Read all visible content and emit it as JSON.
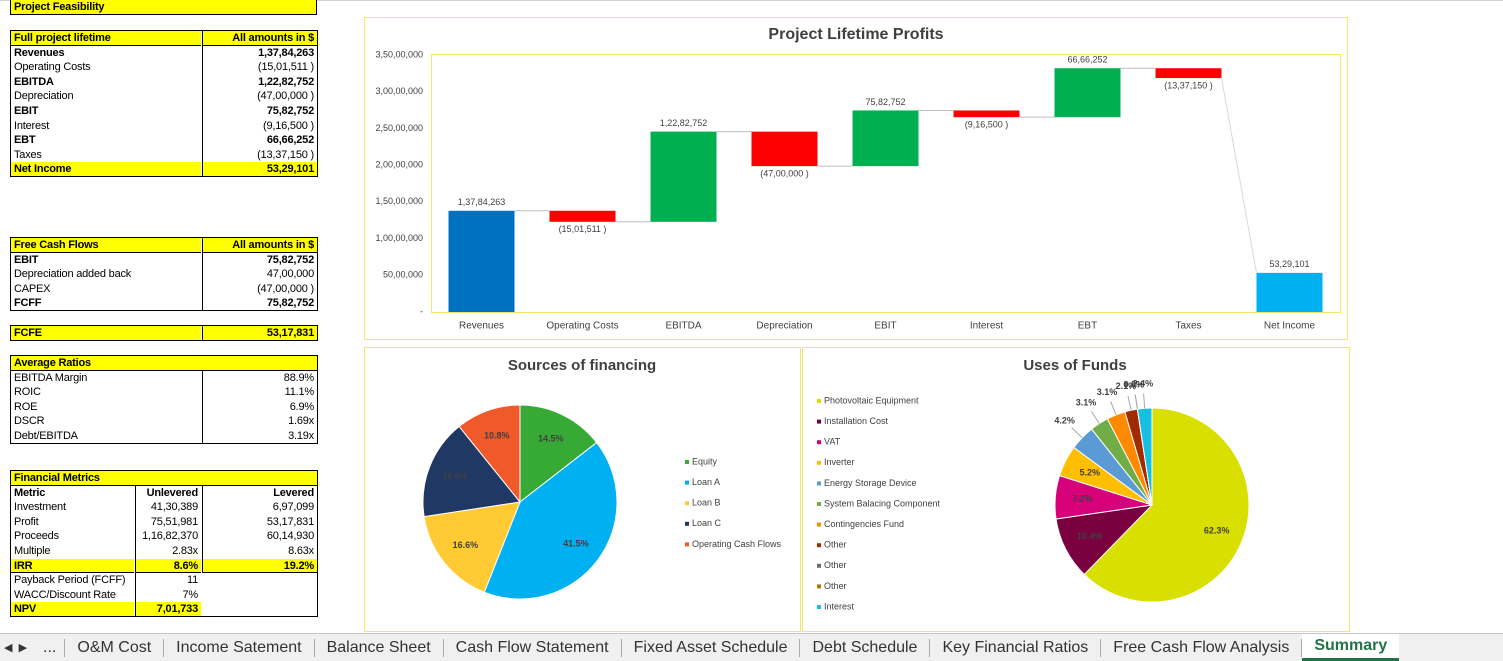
{
  "sheet": {
    "title": "Project Feasibility",
    "lifetime": [
      [
        "Full project lifetime",
        "All amounts in $"
      ],
      [
        "Revenues",
        "1,37,84,263"
      ],
      [
        "Operating Costs",
        "(15,01,511 )"
      ],
      [
        "EBITDA",
        "1,22,82,752"
      ],
      [
        "Depreciation",
        "(47,00,000 )"
      ],
      [
        "EBIT",
        "75,82,752"
      ],
      [
        "Interest",
        "(9,16,500 )"
      ],
      [
        "EBT",
        "66,66,252"
      ],
      [
        "Taxes",
        "(13,37,150 )"
      ],
      [
        "Net Income",
        "53,29,101"
      ]
    ],
    "fcf": [
      [
        "Free Cash Flows",
        "All amounts in $"
      ],
      [
        "EBIT",
        "75,82,752"
      ],
      [
        "Depreciation added back",
        "47,00,000"
      ],
      [
        "CAPEX",
        "(47,00,000 )"
      ],
      [
        "FCFF",
        "75,82,752"
      ]
    ],
    "fcfe": [
      [
        "FCFE",
        "53,17,831"
      ]
    ],
    "ratios": [
      [
        "Average Ratios"
      ],
      [
        "EBITDA Margin",
        "88.9%"
      ],
      [
        "ROIC",
        "11.1%"
      ],
      [
        "ROE",
        "6.9%"
      ],
      [
        "DSCR",
        "1.69x"
      ],
      [
        "Debt/EBITDA",
        "3.19x"
      ]
    ],
    "metrics": [
      [
        "Financial Metrics"
      ],
      [
        "Metric",
        "Unlevered",
        "Levered"
      ],
      [
        "Investment",
        "41,30,389",
        "6,97,099"
      ],
      [
        "Profit",
        "75,51,981",
        "53,17,831"
      ],
      [
        "Proceeds",
        "1,16,82,370",
        "60,14,930"
      ],
      [
        "Multiple",
        "2.83x",
        "8.63x"
      ],
      [
        "IRR",
        "8.6%",
        "19.2%"
      ],
      [
        "Payback Period (FCFF)",
        "11"
      ],
      [
        "WACC/Discount Rate",
        "7%"
      ],
      [
        "NPV",
        "7,01,733"
      ]
    ]
  },
  "tabs": {
    "nav": "...",
    "items": [
      "O&M Cost",
      "Income Satement",
      "Balance Sheet",
      "Cash Flow Statement",
      "Fixed Asset Schedule",
      "Debt Schedule",
      "Key Financial Ratios",
      "Free Cash Flow Analysis",
      "Summary"
    ],
    "active": 8
  },
  "chart_data": [
    {
      "type": "waterfall",
      "title": "Project Lifetime Profits",
      "categories": [
        "Revenues",
        "Operating Costs",
        "EBITDA",
        "Depreciation",
        "EBIT",
        "Interest",
        "EBT",
        "Taxes",
        "Net Income"
      ],
      "values": [
        13784263,
        -1501511,
        12282752,
        -4700000,
        7582752,
        -916500,
        6666252,
        -1337150,
        5329101
      ],
      "value_labels": [
        "1,37,84,263",
        "(15,01,511 )",
        "1,22,82,752",
        "(47,00,000 )",
        "75,82,752",
        "(9,16,500 )",
        "66,66,252",
        "(13,37,150 )",
        "53,29,101"
      ],
      "colors": [
        "#0070c0",
        "#ff0000",
        "#00b050",
        "#ff0000",
        "#00b050",
        "#ff0000",
        "#00b050",
        "#ff0000",
        "#00b0f0"
      ],
      "totals": [
        8
      ],
      "ylim": [
        0,
        35000000
      ],
      "yticks": [
        {
          "value": 0,
          "label": "-"
        },
        {
          "value": 5000000,
          "label": "50,00,000"
        },
        {
          "value": 10000000,
          "label": "1,00,00,000"
        },
        {
          "value": 15000000,
          "label": "1,50,00,000"
        },
        {
          "value": 20000000,
          "label": "2,00,00,000"
        },
        {
          "value": 25000000,
          "label": "2,50,00,000"
        },
        {
          "value": 30000000,
          "label": "3,00,00,000"
        },
        {
          "value": 35000000,
          "label": "3,50,00,000"
        }
      ],
      "grid": false
    },
    {
      "type": "pie",
      "title": "Sources of financing",
      "categories": [
        "Equity",
        "Loan A",
        "Loan B",
        "Loan C",
        "Operating Cash Flows"
      ],
      "values": [
        14.5,
        41.5,
        16.6,
        16.6,
        10.8
      ],
      "value_labels": [
        "14.5%",
        "41.5%",
        "16.6%",
        "16.6%",
        "10.8%"
      ],
      "colors": [
        "#37a935",
        "#00b0f0",
        "#ffca33",
        "#203864",
        "#f05a2a"
      ]
    },
    {
      "type": "pie",
      "title": "Uses of Funds",
      "categories": [
        "Photovoltaic Equipment",
        "Installation Cost",
        "VAT",
        "Inverter",
        "Energy Storage Device",
        "System Balacing Component",
        "Contingencies Fund",
        "Other",
        "Other",
        "Other",
        "Interest"
      ],
      "values": [
        62.3,
        10.4,
        7.2,
        5.2,
        4.2,
        3.1,
        3.1,
        2.1,
        0.0,
        0.0,
        2.4
      ],
      "value_labels": [
        "62.3%",
        "10.4%",
        "7.2%",
        "5.2%",
        "4.2%",
        "3.1%",
        "3.1%",
        "2.1%",
        "0.0%",
        "0.0%",
        "2.4%"
      ],
      "colors": [
        "#d9e000",
        "#7b0040",
        "#d6007a",
        "#ffbf00",
        "#5b9bd5",
        "#70ad47",
        "#ff8a00",
        "#a02b00",
        "#6e6e6e",
        "#b07800",
        "#17c0e0"
      ]
    }
  ]
}
